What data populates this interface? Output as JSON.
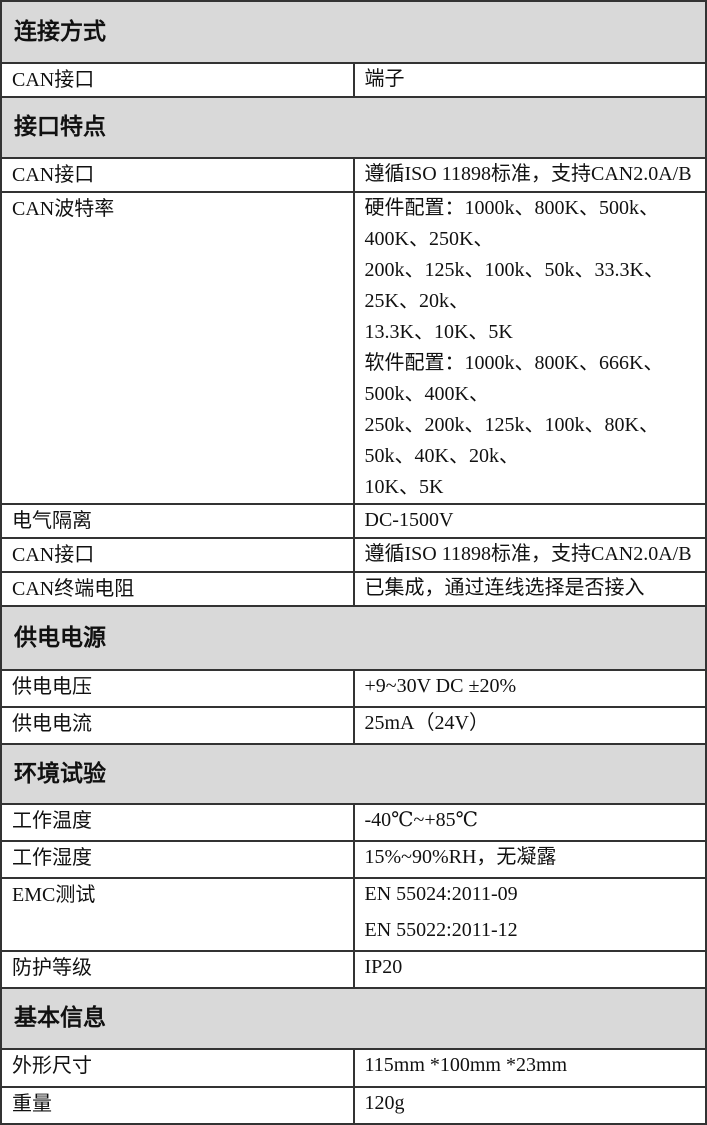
{
  "sections": [
    {
      "title": "连接方式",
      "rows": [
        {
          "label": "CAN接口",
          "lines": [
            "端子"
          ]
        }
      ]
    },
    {
      "title": "接口特点",
      "rows": [
        {
          "label": "CAN接口",
          "lines": [
            "遵循ISO 11898标准，支持CAN2.0A/B"
          ]
        },
        {
          "label": "CAN波特率",
          "lines": [
            "硬件配置：1000k、800K、500k、400K、250K、",
            "200k、125k、100k、50k、33.3K、25K、20k、",
            "13.3K、10K、5K",
            "软件配置：1000k、800K、666K、500k、400K、",
            "250k、200k、125k、100k、80K、50k、40K、20k、",
            "10K、5K"
          ]
        },
        {
          "label": "电气隔离",
          "lines": [
            "DC-1500V"
          ]
        },
        {
          "label": "CAN接口",
          "lines": [
            "遵循ISO 11898标准，支持CAN2.0A/B"
          ]
        },
        {
          "label": "CAN终端电阻",
          "lines": [
            "已集成，通过连线选择是否接入"
          ]
        }
      ]
    },
    {
      "title": "供电电源",
      "rows": [
        {
          "label": "供电电压",
          "lines": [
            "+9~30V DC  ±20%"
          ]
        },
        {
          "label": "供电电流",
          "lines": [
            "25mA（24V）"
          ]
        }
      ]
    },
    {
      "title": "环境试验",
      "rows": [
        {
          "label": "工作温度",
          "lines": [
            "-40℃~+85℃"
          ]
        },
        {
          "label": "工作湿度",
          "lines": [
            "15%~90%RH，无凝露"
          ]
        },
        {
          "label": "EMC测试",
          "lines": [
            "EN 55024:2011-09",
            "EN 55022:2011-12"
          ]
        },
        {
          "label": "防护等级",
          "lines": [
            "IP20"
          ]
        }
      ]
    },
    {
      "title": "基本信息",
      "rows": [
        {
          "label": "外形尺寸",
          "lines": [
            "115mm *100mm *23mm"
          ]
        },
        {
          "label": "重量",
          "lines": [
            "120g"
          ]
        }
      ]
    }
  ]
}
